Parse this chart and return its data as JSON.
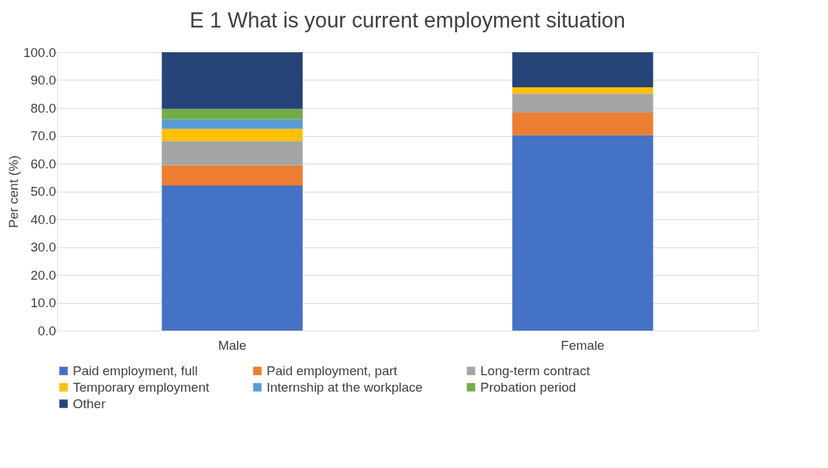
{
  "chart_data": {
    "type": "bar",
    "title": "E 1 What is your current employment situation",
    "ylabel": "Per cent (%)",
    "categories": [
      "Male",
      "Female"
    ],
    "stacked": true,
    "series": [
      {
        "name": "Paid employment, full",
        "color": "#4472c4",
        "values": [
          52.1,
          70.2
        ]
      },
      {
        "name": "Paid employment, part",
        "color": "#ed7d31",
        "values": [
          7.2,
          8.1
        ]
      },
      {
        "name": "Long-term contract",
        "color": "#a5a5a5",
        "values": [
          8.8,
          6.8
        ]
      },
      {
        "name": "Temporary employment",
        "color": "#ffc000",
        "values": [
          4.4,
          2.3
        ]
      },
      {
        "name": "Internship at the workplace",
        "color": "#5b9bd5",
        "values": [
          3.4,
          0
        ]
      },
      {
        "name": "Probation period",
        "color": "#70ad47",
        "values": [
          3.7,
          0
        ]
      },
      {
        "name": "Other",
        "color": "#264478",
        "values": [
          20.4,
          12.6
        ]
      }
    ],
    "ylim": [
      0,
      100
    ],
    "yticks": [
      {
        "value": 0,
        "label": "0.0"
      },
      {
        "value": 10,
        "label": "10.0"
      },
      {
        "value": 20,
        "label": "20.0"
      },
      {
        "value": 30,
        "label": "30.0"
      },
      {
        "value": 40,
        "label": "40.0"
      },
      {
        "value": 50,
        "label": "50.0"
      },
      {
        "value": 60,
        "label": "60.0"
      },
      {
        "value": 70,
        "label": "70.0"
      },
      {
        "value": 80,
        "label": "80.0"
      },
      {
        "value": 90,
        "label": "90.0"
      },
      {
        "value": 100,
        "label": "100.0"
      }
    ],
    "grid": "y",
    "legend": "bottom"
  }
}
